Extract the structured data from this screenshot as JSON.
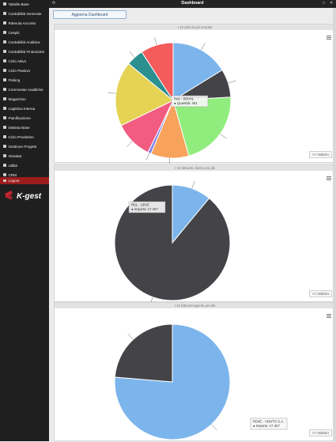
{
  "window": {
    "title": "Dashboard"
  },
  "sidebar": {
    "items": [
      {
        "label": "Tabelle Base"
      },
      {
        "label": "Contabilità Generale"
      },
      {
        "label": "Ritenuta Acconto"
      },
      {
        "label": "Cespiti"
      },
      {
        "label": "Contabilità Analitica"
      },
      {
        "label": "Contabilità Finanziaria"
      },
      {
        "label": "Ciclo Attivo"
      },
      {
        "label": "Ciclo Passivo"
      },
      {
        "label": "Picking"
      },
      {
        "label": "Commesse Analitiche"
      },
      {
        "label": "Magazzino"
      },
      {
        "label": "Logistica Interna"
      },
      {
        "label": "Pianificazione"
      },
      {
        "label": "Distinta Base"
      },
      {
        "label": "Ciclo Produttivo"
      },
      {
        "label": "Gestione Progetti"
      },
      {
        "label": "Intrastat"
      },
      {
        "label": "Utilità"
      },
      {
        "label": "CRM"
      },
      {
        "label": "Logout"
      }
    ],
    "logo_text": "K-gest"
  },
  "toolbar": {
    "refresh_label": "Aggiorna Dashboard"
  },
  "panels": [
    {
      "title": "I 10 articoli più venduti",
      "reset_label": "<< Indietro",
      "tooltip": {
        "line1": "R01 - 00HHL",
        "line2": "● Quantità: 451"
      },
      "chart_type": "pie",
      "colors": [
        "#7cb5ec",
        "#434348",
        "#90ed7d",
        "#f7a35c",
        "#8085e9",
        "#f15c80",
        "#e4d354",
        "#2b908f",
        "#f45b5b",
        "#91e8e1"
      ]
    },
    {
      "title": "I 10 fatturati cliente più alti",
      "reset_label": "<< Indietro",
      "tooltip": {
        "line1": "R01 - U0VE",
        "line2": "● Importo: 17 257"
      },
      "chart_type": "pie",
      "colors": [
        "#7cb5ec",
        "#434348"
      ]
    },
    {
      "title": "I 10 fatturati agente più alti",
      "reset_label": "<< Indietro",
      "tooltip": {
        "line1": "R0XE - VDNTO S.A.",
        "line2": "● Importo: 17 257"
      },
      "chart_type": "pie",
      "colors": [
        "#7cb5ec",
        "#434348"
      ]
    }
  ],
  "chart_data": [
    {
      "type": "pie",
      "title": "I 10 articoli più venduti",
      "values": [
        17.3,
        8.5,
        23.0,
        11.4,
        1.0,
        11.4,
        19.4,
        5.2,
        9.8
      ]
    },
    {
      "type": "pie",
      "title": "I 10 fatturati cliente più alti",
      "values": [
        11.0,
        89.0
      ]
    },
    {
      "type": "pie",
      "title": "I 10 fatturati agente più alti",
      "values": [
        76.3,
        23.7
      ]
    }
  ]
}
